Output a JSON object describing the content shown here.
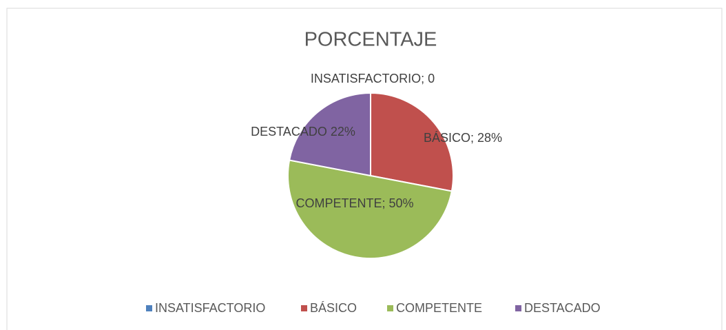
{
  "chart_data": {
    "type": "pie",
    "title": "PORCENTAJE",
    "categories": [
      "INSATISFACTORIO",
      "BÁSICO",
      "COMPETENTE",
      "DESTACADO"
    ],
    "values": [
      0,
      28,
      50,
      22
    ],
    "value_labels": [
      "INSATISFACTORIO; 0",
      "BÁSICO; 28%",
      "COMPETENTE; 50%",
      "DESTACADO 22%"
    ],
    "colors": [
      "#4f81bd",
      "#c0504d",
      "#9bbb59",
      "#8064a2"
    ],
    "legend": "bottom"
  }
}
